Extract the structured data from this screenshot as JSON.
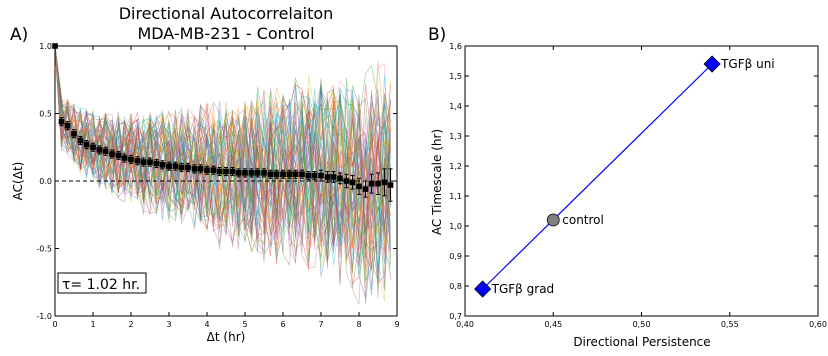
{
  "colors": {
    "mean_marker": "#000000",
    "line": "#0000ff",
    "diamond": "#0000ff",
    "circle": "#808080",
    "traces": [
      "#1f77b4",
      "#2ca02c",
      "#d62728",
      "#17becf",
      "#bcbd22",
      "#9467bd",
      "#e377c2",
      "#7f7f7f",
      "#ff7f0e",
      "#8c564b"
    ]
  },
  "chart_data": [
    {
      "panel_label": "A)",
      "type": "line",
      "title": [
        "Directional Autocorrelaiton",
        "MDA-MB-231 - Control"
      ],
      "xlabel": "Δt  (hr)",
      "ylabel": "AC(Δt)",
      "xlim": [
        0,
        9
      ],
      "ylim": [
        -1.0,
        1.0
      ],
      "xticks": [
        "0",
        "1",
        "2",
        "3",
        "4",
        "5",
        "6",
        "7",
        "8",
        "9"
      ],
      "yticks": [
        "-1.0",
        "-0.5",
        "0.0",
        "0.5",
        "1.0"
      ],
      "tau_label": "τ= 1.02 hr.",
      "mean": {
        "x": [
          0.0,
          0.17,
          0.33,
          0.5,
          0.67,
          0.83,
          1.0,
          1.17,
          1.33,
          1.5,
          1.67,
          1.83,
          2.0,
          2.17,
          2.33,
          2.5,
          2.67,
          2.83,
          3.0,
          3.17,
          3.33,
          3.5,
          3.67,
          3.83,
          4.0,
          4.17,
          4.33,
          4.5,
          4.67,
          4.83,
          5.0,
          5.17,
          5.33,
          5.5,
          5.67,
          5.83,
          6.0,
          6.17,
          6.33,
          6.5,
          6.67,
          6.83,
          7.0,
          7.17,
          7.33,
          7.5,
          7.67,
          7.83,
          8.0,
          8.17,
          8.33,
          8.5,
          8.67,
          8.83
        ],
        "y": [
          1.0,
          0.44,
          0.41,
          0.35,
          0.3,
          0.27,
          0.25,
          0.23,
          0.22,
          0.2,
          0.19,
          0.17,
          0.16,
          0.15,
          0.14,
          0.14,
          0.13,
          0.12,
          0.11,
          0.11,
          0.1,
          0.1,
          0.09,
          0.09,
          0.08,
          0.08,
          0.07,
          0.07,
          0.07,
          0.06,
          0.06,
          0.06,
          0.06,
          0.06,
          0.05,
          0.05,
          0.05,
          0.05,
          0.05,
          0.05,
          0.04,
          0.04,
          0.04,
          0.03,
          0.03,
          0.02,
          0.0,
          -0.01,
          -0.04,
          -0.06,
          -0.02,
          -0.02,
          -0.01,
          -0.03
        ],
        "err": [
          0,
          0.03,
          0.03,
          0.03,
          0.03,
          0.03,
          0.03,
          0.03,
          0.03,
          0.03,
          0.03,
          0.03,
          0.03,
          0.03,
          0.03,
          0.03,
          0.03,
          0.03,
          0.03,
          0.03,
          0.03,
          0.03,
          0.03,
          0.03,
          0.03,
          0.03,
          0.03,
          0.03,
          0.03,
          0.03,
          0.03,
          0.03,
          0.03,
          0.03,
          0.03,
          0.03,
          0.03,
          0.03,
          0.03,
          0.03,
          0.03,
          0.03,
          0.04,
          0.04,
          0.04,
          0.04,
          0.05,
          0.05,
          0.06,
          0.06,
          0.07,
          0.08,
          0.1,
          0.12
        ]
      }
    },
    {
      "panel_label": "B)",
      "type": "scatter",
      "xlabel": "Directional Persistence",
      "ylabel": "AC Timescale (hr)",
      "xlim": [
        0.4,
        0.6
      ],
      "ylim": [
        0.7,
        1.6
      ],
      "xticks": [
        "0,40",
        "0,45",
        "0,50",
        "0,55",
        "0,60"
      ],
      "yticks": [
        "0,7",
        "0,8",
        "0,9",
        "1,0",
        "1,1",
        "1,2",
        "1,3",
        "1,4",
        "1,5",
        "1,6"
      ],
      "points": [
        {
          "label": "TGFβ grad",
          "x": 0.41,
          "y": 0.79,
          "marker": "diamond"
        },
        {
          "label": "control",
          "x": 0.45,
          "y": 1.02,
          "marker": "circle"
        },
        {
          "label": "TGFβ uni",
          "x": 0.54,
          "y": 1.54,
          "marker": "diamond"
        }
      ]
    }
  ]
}
